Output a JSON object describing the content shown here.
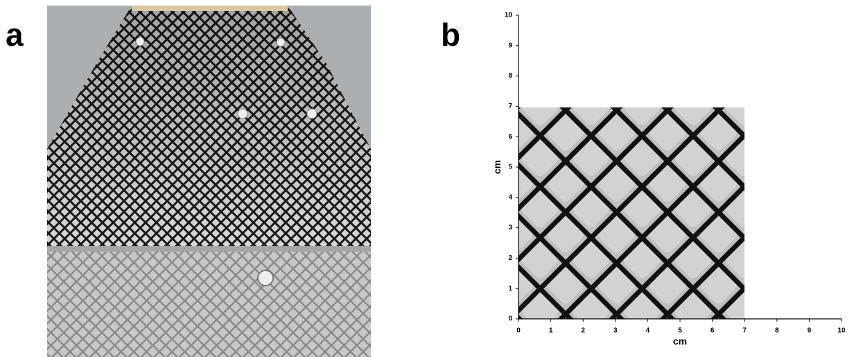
{
  "panels": [
    {
      "label": "a"
    },
    {
      "label": "b",
      "axes": {
        "xlabel": "cm",
        "ylabel": "cm",
        "xlim": [
          0,
          10
        ],
        "ylim": [
          0,
          10
        ],
        "xticks": [
          0,
          1,
          2,
          3,
          4,
          5,
          6,
          7,
          8,
          9,
          10
        ],
        "yticks": [
          0,
          1,
          2,
          3,
          4,
          5,
          6,
          7,
          8,
          9,
          10
        ]
      }
    }
  ]
}
